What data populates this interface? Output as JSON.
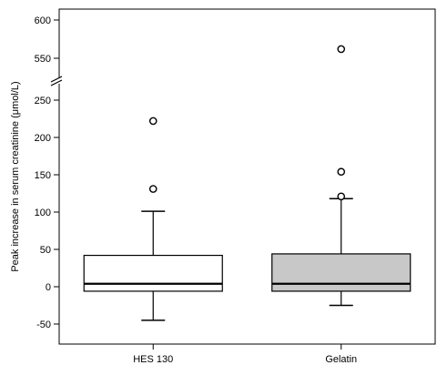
{
  "chart_data": {
    "type": "box",
    "ylabel": "Peak increase in serum creatinine (μmol/L)",
    "xlabel": "",
    "categories": [
      "HES 130",
      "Gelatin"
    ],
    "y_axis_broken": true,
    "ylim_lower": [
      -60,
      275
    ],
    "ylim_upper": [
      530,
      610
    ],
    "yticks_lower": [
      -50,
      0,
      50,
      100,
      150,
      200,
      250
    ],
    "yticks_upper": [
      550,
      600
    ],
    "ytick_labels_lower": [
      "-50",
      "0",
      "50",
      "100",
      "150",
      "200",
      "250"
    ],
    "ytick_labels_upper": [
      "550",
      "600"
    ],
    "boxes": [
      {
        "category": "HES 130",
        "whisker_low": -45,
        "q1": -6,
        "median": 4,
        "q3": 42,
        "whisker_high": 101,
        "outliers": [
          131,
          222
        ],
        "fill": "#ffffff"
      },
      {
        "category": "Gelatin",
        "whisker_low": -25,
        "q1": -6,
        "median": 4,
        "q3": 44,
        "whisker_high": 118,
        "outliers": [
          121,
          154,
          562
        ],
        "fill": "#c8c8c8"
      }
    ]
  }
}
